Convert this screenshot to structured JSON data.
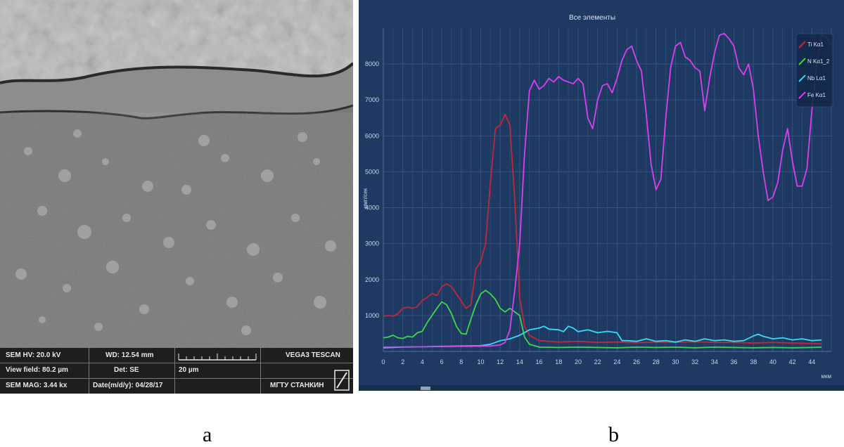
{
  "sem_panel": {
    "info": {
      "hv": "SEM HV: 20.0 kV",
      "view_field": "View field: 80.2 µm",
      "mag": "SEM MAG: 3.44 kx",
      "wd": "WD: 12.54 mm",
      "det": "Det: SE",
      "date": "Date(m/d/y): 04/28/17",
      "scale_label": "20 µm",
      "instrument": "VEGA3 TESCAN",
      "institution": "МГТУ СТАНКИН"
    }
  },
  "chart_data": {
    "type": "line",
    "title": "Все элементы",
    "xlabel": "мкм",
    "ylabel": "имп/сек",
    "xlim": [
      0,
      46
    ],
    "ylim": [
      0,
      9000
    ],
    "xticks": [
      0,
      2,
      4,
      6,
      8,
      10,
      12,
      14,
      16,
      18,
      20,
      22,
      24,
      26,
      28,
      30,
      32,
      34,
      36,
      38,
      40,
      42,
      44
    ],
    "yticks": [
      1000,
      2000,
      3000,
      4000,
      5000,
      6000,
      7000,
      8000
    ],
    "grid": true,
    "legend_position": "top-right",
    "series": [
      {
        "name": "Ti Kα1",
        "color": "#c0283a",
        "points": [
          [
            0,
            980
          ],
          [
            0.5,
            1000
          ],
          [
            1,
            980
          ],
          [
            1.5,
            1050
          ],
          [
            2,
            1200
          ],
          [
            2.5,
            1230
          ],
          [
            3,
            1200
          ],
          [
            3.5,
            1250
          ],
          [
            4,
            1420
          ],
          [
            4.5,
            1500
          ],
          [
            5,
            1620
          ],
          [
            5.5,
            1550
          ],
          [
            6,
            1800
          ],
          [
            6.5,
            1880
          ],
          [
            7,
            1800
          ],
          [
            7.5,
            1600
          ],
          [
            8,
            1400
          ],
          [
            8.5,
            1200
          ],
          [
            9,
            1300
          ],
          [
            9.5,
            2300
          ],
          [
            10,
            2500
          ],
          [
            10.5,
            3000
          ],
          [
            11,
            4700
          ],
          [
            11.5,
            6200
          ],
          [
            12,
            6300
          ],
          [
            12.5,
            6600
          ],
          [
            13,
            6300
          ],
          [
            13.5,
            4200
          ],
          [
            14,
            1500
          ],
          [
            14.5,
            700
          ],
          [
            15,
            450
          ],
          [
            16,
            300
          ],
          [
            18,
            260
          ],
          [
            20,
            280
          ],
          [
            22,
            250
          ],
          [
            24,
            260
          ],
          [
            26,
            240
          ],
          [
            28,
            260
          ],
          [
            30,
            250
          ],
          [
            32,
            270
          ],
          [
            34,
            250
          ],
          [
            36,
            250
          ],
          [
            38,
            230
          ],
          [
            40,
            250
          ],
          [
            42,
            230
          ],
          [
            44,
            220
          ],
          [
            45,
            210
          ]
        ]
      },
      {
        "name": "N Kα1_2",
        "color": "#3ed84c",
        "points": [
          [
            0,
            380
          ],
          [
            0.5,
            400
          ],
          [
            1,
            450
          ],
          [
            1.5,
            380
          ],
          [
            2,
            360
          ],
          [
            2.5,
            420
          ],
          [
            3,
            400
          ],
          [
            3.5,
            520
          ],
          [
            4,
            560
          ],
          [
            4.5,
            800
          ],
          [
            5,
            1000
          ],
          [
            5.5,
            1200
          ],
          [
            6,
            1380
          ],
          [
            6.5,
            1300
          ],
          [
            7,
            1050
          ],
          [
            7.5,
            700
          ],
          [
            8,
            500
          ],
          [
            8.5,
            480
          ],
          [
            9,
            900
          ],
          [
            9.5,
            1300
          ],
          [
            10,
            1600
          ],
          [
            10.5,
            1700
          ],
          [
            11,
            1600
          ],
          [
            11.5,
            1450
          ],
          [
            12,
            1200
          ],
          [
            12.5,
            1100
          ],
          [
            13,
            1200
          ],
          [
            13.5,
            1100
          ],
          [
            14,
            1000
          ],
          [
            14.5,
            400
          ],
          [
            15,
            200
          ],
          [
            16,
            120
          ],
          [
            18,
            110
          ],
          [
            20,
            120
          ],
          [
            22,
            110
          ],
          [
            24,
            100
          ],
          [
            26,
            120
          ],
          [
            28,
            110
          ],
          [
            30,
            120
          ],
          [
            32,
            100
          ],
          [
            34,
            120
          ],
          [
            36,
            110
          ],
          [
            38,
            100
          ],
          [
            40,
            110
          ],
          [
            42,
            100
          ],
          [
            44,
            110
          ],
          [
            45,
            120
          ]
        ]
      },
      {
        "name": "Nb Lα1",
        "color": "#36dcf0",
        "points": [
          [
            0,
            100
          ],
          [
            2,
            120
          ],
          [
            4,
            130
          ],
          [
            6,
            140
          ],
          [
            8,
            150
          ],
          [
            10,
            160
          ],
          [
            11,
            200
          ],
          [
            12,
            300
          ],
          [
            13,
            350
          ],
          [
            14,
            450
          ],
          [
            15,
            600
          ],
          [
            16,
            650
          ],
          [
            16.5,
            700
          ],
          [
            17,
            620
          ],
          [
            18,
            600
          ],
          [
            18.5,
            550
          ],
          [
            19,
            700
          ],
          [
            19.5,
            650
          ],
          [
            20,
            550
          ],
          [
            21,
            600
          ],
          [
            22,
            520
          ],
          [
            23,
            560
          ],
          [
            24,
            520
          ],
          [
            24.5,
            300
          ],
          [
            25,
            300
          ],
          [
            26,
            280
          ],
          [
            27,
            350
          ],
          [
            28,
            280
          ],
          [
            29,
            300
          ],
          [
            30,
            260
          ],
          [
            31,
            320
          ],
          [
            32,
            280
          ],
          [
            33,
            350
          ],
          [
            34,
            300
          ],
          [
            35,
            320
          ],
          [
            36,
            280
          ],
          [
            37,
            300
          ],
          [
            38,
            430
          ],
          [
            38.5,
            480
          ],
          [
            39,
            420
          ],
          [
            40,
            350
          ],
          [
            41,
            380
          ],
          [
            42,
            320
          ],
          [
            43,
            350
          ],
          [
            44,
            300
          ],
          [
            45,
            320
          ]
        ]
      },
      {
        "name": "Fe Kα1",
        "color": "#d840ee",
        "points": [
          [
            0,
            120
          ],
          [
            4,
            130
          ],
          [
            8,
            140
          ],
          [
            11,
            150
          ],
          [
            12,
            180
          ],
          [
            12.5,
            250
          ],
          [
            13,
            600
          ],
          [
            13.5,
            1700
          ],
          [
            14,
            3000
          ],
          [
            14.5,
            5500
          ],
          [
            15,
            7250
          ],
          [
            15.5,
            7550
          ],
          [
            16,
            7300
          ],
          [
            16.5,
            7400
          ],
          [
            17,
            7600
          ],
          [
            17.5,
            7500
          ],
          [
            18,
            7650
          ],
          [
            18.5,
            7550
          ],
          [
            19,
            7500
          ],
          [
            19.5,
            7450
          ],
          [
            20,
            7600
          ],
          [
            20.5,
            7450
          ],
          [
            21,
            6500
          ],
          [
            21.5,
            6200
          ],
          [
            22,
            7000
          ],
          [
            22.5,
            7400
          ],
          [
            23,
            7450
          ],
          [
            23.5,
            7200
          ],
          [
            24,
            7600
          ],
          [
            24.5,
            8100
          ],
          [
            25,
            8400
          ],
          [
            25.5,
            8500
          ],
          [
            26,
            8100
          ],
          [
            26.5,
            7800
          ],
          [
            27,
            6600
          ],
          [
            27.5,
            5200
          ],
          [
            28,
            4500
          ],
          [
            28.5,
            4800
          ],
          [
            29,
            6500
          ],
          [
            29.5,
            7900
          ],
          [
            30,
            8500
          ],
          [
            30.5,
            8600
          ],
          [
            31,
            8200
          ],
          [
            31.5,
            8100
          ],
          [
            32,
            7900
          ],
          [
            32.5,
            7800
          ],
          [
            33,
            6700
          ],
          [
            33.5,
            7600
          ],
          [
            34,
            8300
          ],
          [
            34.5,
            8800
          ],
          [
            35,
            8850
          ],
          [
            35.5,
            8700
          ],
          [
            36,
            8500
          ],
          [
            36.5,
            7900
          ],
          [
            37,
            7700
          ],
          [
            37.5,
            8000
          ],
          [
            38,
            7300
          ],
          [
            38.5,
            6000
          ],
          [
            39,
            5000
          ],
          [
            39.5,
            4200
          ],
          [
            40,
            4300
          ],
          [
            40.5,
            4700
          ],
          [
            41,
            5600
          ],
          [
            41.5,
            6200
          ],
          [
            42,
            5300
          ],
          [
            42.5,
            4600
          ],
          [
            43,
            4600
          ],
          [
            43.5,
            5100
          ],
          [
            44,
            6700
          ],
          [
            44.5,
            8000
          ],
          [
            45,
            8800
          ],
          [
            45.5,
            8750
          ],
          [
            46,
            8500
          ]
        ]
      }
    ]
  },
  "captions": {
    "a": "a",
    "b": "b"
  }
}
